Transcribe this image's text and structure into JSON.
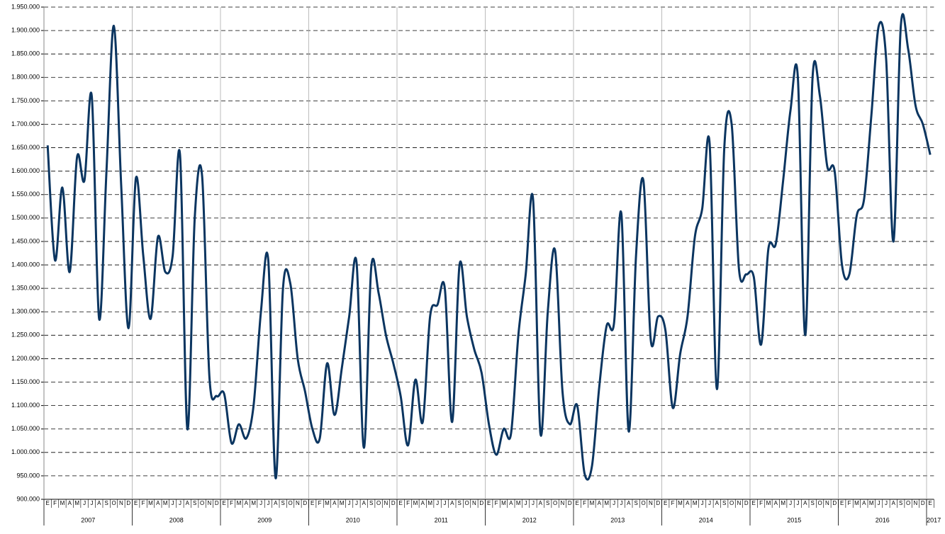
{
  "chart_data": {
    "type": "line",
    "categories": [
      "E",
      "F",
      "M",
      "A",
      "M",
      "J",
      "J",
      "A",
      "S",
      "O",
      "N",
      "D",
      "E",
      "F",
      "M",
      "A",
      "M",
      "J",
      "J",
      "A",
      "S",
      "O",
      "N",
      "D",
      "E",
      "F",
      "M",
      "A",
      "M",
      "J",
      "J",
      "A",
      "S",
      "O",
      "N",
      "D",
      "E",
      "F",
      "M",
      "A",
      "M",
      "J",
      "J",
      "A",
      "S",
      "O",
      "N",
      "D",
      "E",
      "F",
      "M",
      "A",
      "M",
      "J",
      "J",
      "A",
      "S",
      "O",
      "N",
      "D",
      "E",
      "F",
      "M",
      "A",
      "M",
      "J",
      "J",
      "A",
      "S",
      "O",
      "N",
      "D",
      "E",
      "F",
      "M",
      "A",
      "M",
      "J",
      "J",
      "A",
      "S",
      "O",
      "N",
      "D",
      "E",
      "F",
      "M",
      "A",
      "M",
      "J",
      "J",
      "A",
      "S",
      "O",
      "N",
      "D",
      "E",
      "F",
      "M",
      "A",
      "M",
      "J",
      "J",
      "A",
      "S",
      "O",
      "N",
      "D",
      "E",
      "F",
      "M",
      "A",
      "M",
      "J",
      "J",
      "A",
      "S",
      "O",
      "N",
      "D",
      "E"
    ],
    "years": [
      "2007",
      "2008",
      "2009",
      "2010",
      "2011",
      "2012",
      "2013",
      "2014",
      "2015",
      "2016",
      "2017"
    ],
    "series": [
      {
        "color": "#0b3560",
        "values": [
          1655000,
          1410000,
          1565000,
          1385000,
          1630000,
          1580000,
          1760000,
          1285000,
          1600000,
          1910000,
          1570000,
          1265000,
          1585000,
          1420000,
          1285000,
          1460000,
          1385000,
          1420000,
          1635000,
          1050000,
          1500000,
          1590000,
          1160000,
          1120000,
          1125000,
          1020000,
          1060000,
          1030000,
          1100000,
          1300000,
          1410000,
          945000,
          1350000,
          1360000,
          1200000,
          1130000,
          1050000,
          1030000,
          1190000,
          1080000,
          1180000,
          1290000,
          1405000,
          1010000,
          1395000,
          1340000,
          1250000,
          1190000,
          1120000,
          1015000,
          1155000,
          1065000,
          1290000,
          1315000,
          1350000,
          1065000,
          1400000,
          1290000,
          1220000,
          1170000,
          1060000,
          995000,
          1050000,
          1040000,
          1250000,
          1380000,
          1540000,
          1040000,
          1300000,
          1430000,
          1130000,
          1060000,
          1100000,
          955000,
          970000,
          1140000,
          1270000,
          1275000,
          1510000,
          1045000,
          1420000,
          1580000,
          1240000,
          1290000,
          1260000,
          1095000,
          1210000,
          1290000,
          1460000,
          1520000,
          1660000,
          1135000,
          1650000,
          1700000,
          1390000,
          1380000,
          1375000,
          1230000,
          1435000,
          1445000,
          1580000,
          1730000,
          1800000,
          1250000,
          1800000,
          1760000,
          1610000,
          1600000,
          1400000,
          1380000,
          1505000,
          1540000,
          1720000,
          1910000,
          1840000,
          1450000,
          1910000,
          1860000,
          1740000,
          1700000,
          1635000
        ]
      }
    ],
    "ylim": [
      900000,
      1950000
    ],
    "yticks": [
      {
        "value": 900000,
        "label": "900.000"
      },
      {
        "value": 950000,
        "label": "950.000"
      },
      {
        "value": 1000000,
        "label": "1.000.000"
      },
      {
        "value": 1050000,
        "label": "1.050.000"
      },
      {
        "value": 1100000,
        "label": "1.100.000"
      },
      {
        "value": 1150000,
        "label": "1.150.000"
      },
      {
        "value": 1200000,
        "label": "1.200.000"
      },
      {
        "value": 1250000,
        "label": "1.250.000"
      },
      {
        "value": 1300000,
        "label": "1.300.000"
      },
      {
        "value": 1350000,
        "label": "1.350.000"
      },
      {
        "value": 1400000,
        "label": "1.400.000"
      },
      {
        "value": 1450000,
        "label": "1.450.000"
      },
      {
        "value": 1500000,
        "label": "1.500.000"
      },
      {
        "value": 1550000,
        "label": "1.550.000"
      },
      {
        "value": 1600000,
        "label": "1.600.000"
      },
      {
        "value": 1650000,
        "label": "1.650.000"
      },
      {
        "value": 1700000,
        "label": "1.700.000"
      },
      {
        "value": 1750000,
        "label": "1.750.000"
      },
      {
        "value": 1800000,
        "label": "1.800.000"
      },
      {
        "value": 1850000,
        "label": "1.850.000"
      },
      {
        "value": 1900000,
        "label": "1.900.000"
      },
      {
        "value": 1950000,
        "label": "1.950.000"
      }
    ],
    "grid": true
  }
}
